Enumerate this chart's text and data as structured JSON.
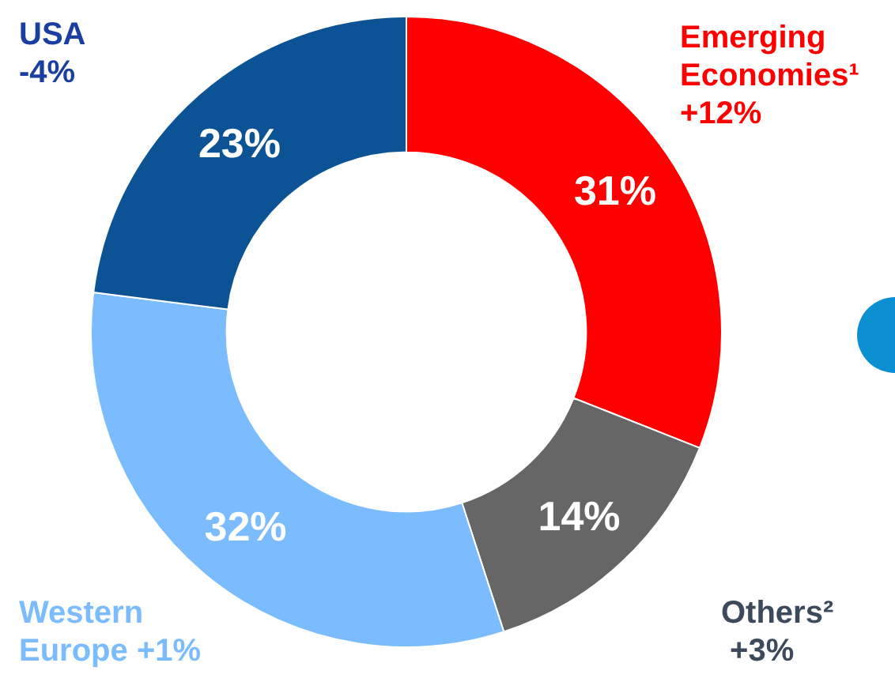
{
  "chart_data": {
    "type": "donut",
    "categories": [
      "Emerging Economies¹",
      "Others²",
      "Western Europe",
      "USA"
    ],
    "values": [
      31,
      14,
      32,
      23
    ],
    "colors": [
      "#ff0000",
      "#666666",
      "#7bbcff",
      "#0b5394"
    ],
    "value_labels": [
      "31%",
      "14%",
      "32%",
      "23%"
    ],
    "annotations": [
      "+12%",
      "+3%",
      "+1%",
      "-4%"
    ]
  }
}
